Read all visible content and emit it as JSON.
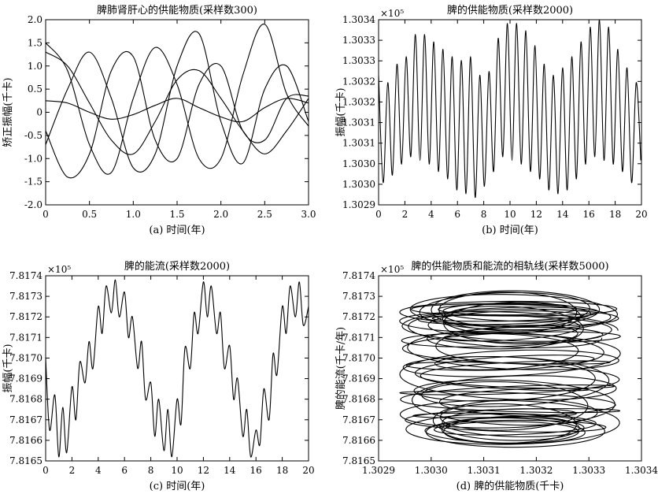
{
  "chart_data": [
    {
      "type": "line",
      "title": "脾肺肾肝心的供能物质(采样数300)",
      "xlabel": "(a) 时间(年)",
      "ylabel": "矫正振幅(千卡)",
      "xlim": [
        0,
        3.0
      ],
      "ylim": [
        -2.0,
        2.0
      ],
      "xticks": [
        "0",
        "0.5",
        "1.0",
        "1.5",
        "2.0",
        "2.5",
        "3.0"
      ],
      "yticks": [
        "-2.0",
        "-1.5",
        "-1.0",
        "-0.5",
        "0",
        "0.5",
        "1.0",
        "1.5",
        "2.0"
      ],
      "exponent": "",
      "series": [
        {
          "x": [
            0,
            0.25,
            0.5,
            0.75,
            1.0,
            1.25,
            1.5,
            1.75,
            2.0,
            2.25,
            2.5,
            2.75,
            3.0
          ],
          "y": [
            1.5,
            0.9,
            -0.7,
            -1.3,
            0.3,
            1.4,
            0.6,
            -1.0,
            -1.0,
            0.8,
            1.9,
            0.4,
            -0.3
          ]
        },
        {
          "x": [
            0,
            0.25,
            0.5,
            0.75,
            1.0,
            1.25,
            1.5,
            1.75,
            2.0,
            2.25,
            2.5,
            2.75,
            3.0
          ],
          "y": [
            -0.4,
            -1.4,
            -0.9,
            0.9,
            1.2,
            -0.6,
            -1.0,
            0.6,
            1.0,
            -0.4,
            -0.6,
            0.3,
            0.35
          ]
        },
        {
          "x": [
            0,
            0.25,
            0.5,
            0.75,
            1.0,
            1.25,
            1.5,
            1.75,
            2.0,
            2.25,
            2.5,
            2.75,
            3.0
          ],
          "y": [
            -0.7,
            0.5,
            1.3,
            0.3,
            -1.2,
            -0.9,
            1.0,
            1.7,
            -0.2,
            -1.1,
            0.5,
            1.0,
            -0.2
          ]
        },
        {
          "x": [
            0,
            0.25,
            0.5,
            0.75,
            1.0,
            1.25,
            1.5,
            1.75,
            2.0,
            2.25,
            2.5,
            2.75,
            3.0
          ],
          "y": [
            0.25,
            0.2,
            0.0,
            -0.15,
            -0.05,
            0.15,
            0.3,
            0.1,
            -0.1,
            -0.2,
            0.1,
            0.3,
            0.2
          ]
        },
        {
          "x": [
            0,
            0.25,
            0.5,
            0.75,
            1.0,
            1.25,
            1.5,
            1.75,
            2.0,
            2.25,
            2.5,
            2.75,
            3.0
          ],
          "y": [
            1.3,
            1.0,
            0.2,
            -0.6,
            -0.9,
            -0.2,
            0.7,
            0.9,
            0.3,
            -0.4,
            -0.9,
            -0.4,
            0.3
          ]
        }
      ]
    },
    {
      "type": "line",
      "title": "脾的供能物质(采样数2000)",
      "xlabel": "(b) 时间(年)",
      "ylabel": "振幅(千卡)",
      "xlim": [
        0,
        20
      ],
      "ylim": [
        1.3029,
        1.3034
      ],
      "xticks": [
        "0",
        "2",
        "4",
        "6",
        "8",
        "10",
        "12",
        "14",
        "16",
        "18",
        "20"
      ],
      "yticks": [
        "1.3029",
        "1.3030",
        "1.3030",
        "1.3031",
        "1.3031",
        "1.3032",
        "1.3032",
        "1.3033",
        "1.3033",
        "1.3034"
      ],
      "exponent": "×10⁵",
      "series": [
        {
          "x": [
            0,
            0.35,
            0.7,
            1.05,
            1.4,
            1.75,
            2.1,
            2.45,
            2.8,
            3.15,
            3.5,
            3.85,
            4.2,
            4.55,
            4.9,
            5.25,
            5.6,
            5.95,
            6.3,
            6.65,
            7.0,
            7.35,
            7.7,
            8.05,
            8.4,
            8.75,
            9.1,
            9.45,
            9.8,
            10.15,
            10.5,
            10.85,
            11.2,
            11.55,
            11.9,
            12.25,
            12.6,
            12.95,
            13.3,
            13.65,
            14.0,
            14.35,
            14.7,
            15.05,
            15.4,
            15.75,
            16.1,
            16.45,
            16.8,
            17.15,
            17.5,
            17.85,
            18.2,
            18.55,
            18.9,
            19.25,
            19.6,
            19.95
          ],
          "y": [
            1.30325,
            1.30296,
            1.30323,
            1.30298,
            1.30328,
            1.30301,
            1.3033,
            1.30303,
            1.30336,
            1.30302,
            1.30336,
            1.30301,
            1.30334,
            1.30299,
            1.30332,
            1.30297,
            1.3033,
            1.30294,
            1.30329,
            1.30293,
            1.3033,
            1.30292,
            1.30325,
            1.30295,
            1.30326,
            1.30299,
            1.30335,
            1.30303,
            1.30339,
            1.30302,
            1.30339,
            1.30301,
            1.30337,
            1.30299,
            1.30333,
            1.30297,
            1.30328,
            1.30294,
            1.30325,
            1.30293,
            1.30327,
            1.30294,
            1.3033,
            1.30297,
            1.30334,
            1.30301,
            1.30338,
            1.30303,
            1.3034,
            1.30302,
            1.30338,
            1.30301,
            1.30332,
            1.30299,
            1.30327,
            1.30296,
            1.30323,
            1.30302
          ]
        }
      ]
    },
    {
      "type": "line",
      "title": "脾的能流(采样数2000)",
      "xlabel": "(c) 时间(年)",
      "ylabel": "振幅(千卡)",
      "xlim": [
        0,
        20
      ],
      "ylim": [
        7.8165,
        7.8174
      ],
      "xticks": [
        "0",
        "2",
        "4",
        "6",
        "8",
        "10",
        "12",
        "14",
        "16",
        "18",
        "20"
      ],
      "yticks": [
        "7.8165",
        "7.8166",
        "7.8167",
        "7.8168",
        "7.8169",
        "7.8170",
        "7.8171",
        "7.8172",
        "7.8173",
        "7.8174"
      ],
      "exponent": "×10⁵",
      "series": [
        {
          "x": [
            0,
            0.3,
            0.7,
            1.0,
            1.3,
            1.6,
            2.0,
            2.3,
            2.6,
            3.0,
            3.3,
            3.6,
            4.0,
            4.3,
            4.6,
            5.0,
            5.3,
            5.6,
            6.0,
            6.3,
            6.6,
            7.0,
            7.3,
            7.6,
            8.0,
            8.3,
            8.6,
            9.0,
            9.3,
            9.6,
            10.0,
            10.3,
            10.6,
            11.0,
            11.3,
            11.6,
            12.0,
            12.3,
            12.6,
            13.0,
            13.3,
            13.6,
            14.0,
            14.3,
            14.6,
            15.0,
            15.3,
            15.6,
            16.0,
            16.3,
            16.6,
            17.0,
            17.3,
            17.6,
            18.0,
            18.3,
            18.6,
            19.0,
            19.3,
            19.6,
            20.0
          ],
          "y": [
            7.817,
            7.81665,
            7.81682,
            7.81652,
            7.81676,
            7.81654,
            7.81686,
            7.8167,
            7.81698,
            7.81688,
            7.81708,
            7.81695,
            7.81725,
            7.81712,
            7.81735,
            7.81722,
            7.81738,
            7.8172,
            7.81732,
            7.8171,
            7.8172,
            7.81695,
            7.81708,
            7.8168,
            7.81688,
            7.81662,
            7.8168,
            7.81655,
            7.81675,
            7.81652,
            7.8168,
            7.81668,
            7.81705,
            7.81695,
            7.81722,
            7.81712,
            7.81737,
            7.8172,
            7.81735,
            7.81712,
            7.81722,
            7.81695,
            7.81706,
            7.8168,
            7.8169,
            7.81662,
            7.81675,
            7.81652,
            7.81665,
            7.81658,
            7.81685,
            7.8167,
            7.81702,
            7.81692,
            7.81725,
            7.81712,
            7.81735,
            7.8172,
            7.81737,
            7.81716,
            7.81725
          ]
        }
      ]
    },
    {
      "type": "line",
      "title": "脾的供能物质和能流的相轨线(采样数5000)",
      "xlabel": "(d) 脾的供能物质(千卡)",
      "ylabel": "脾的能流(千卡/年)",
      "xlim": [
        1.3029,
        1.3034
      ],
      "ylim": [
        7.8165,
        7.8174
      ],
      "xticks": [
        "1.3029",
        "1.3030",
        "1.3031",
        "1.3032",
        "1.3033",
        "1.3034"
      ],
      "yticks": [
        "7.8165",
        "7.8166",
        "7.8167",
        "7.8168",
        "7.8169",
        "7.8170",
        "7.8171",
        "7.8172",
        "7.8173",
        "7.8174"
      ],
      "exponent": "×10⁵",
      "phase": {
        "x_center": 1.30315,
        "x_radius": 0.00021,
        "y_min": 7.81655,
        "y_max": 7.81733,
        "y_radius_min": 3e-05,
        "y_radius_max": 9e-05,
        "loops": 46
      }
    }
  ]
}
